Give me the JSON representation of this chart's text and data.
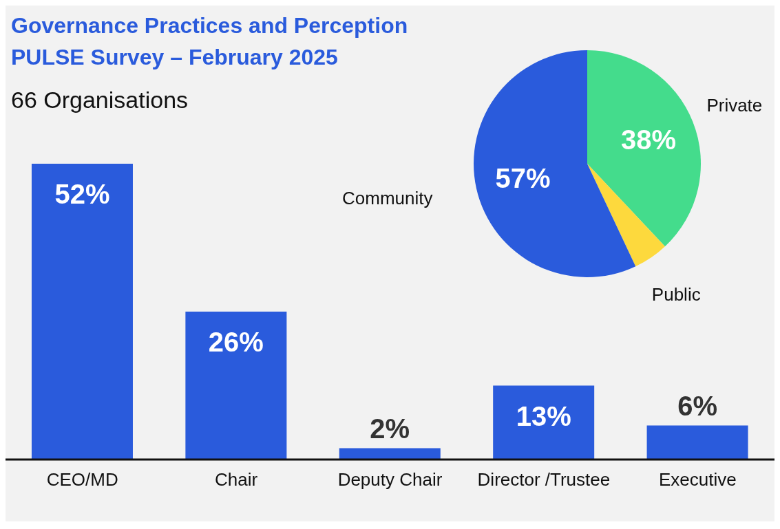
{
  "chart_data": [
    {
      "type": "bar",
      "title": "Governance Practices and Perception",
      "subtitle": "PULSE Survey – February 2025",
      "annotations": [
        "66 Organisations"
      ],
      "categories": [
        "CEO/MD",
        "Chair",
        "Deputy Chair",
        "Director /Trustee",
        "Executive"
      ],
      "values": [
        52,
        26,
        2,
        13,
        6
      ],
      "value_labels": [
        "52%",
        "26%",
        "2%",
        "13%",
        "6%"
      ],
      "color": "#2a5bdc"
    },
    {
      "type": "pie",
      "categories": [
        "Private",
        "Public",
        "Community"
      ],
      "values": [
        38,
        5,
        57
      ],
      "colors": [
        "#44dc8c",
        "#fdd93d",
        "#2a5bdc"
      ],
      "value_labels": [
        "38%",
        null,
        "57%"
      ]
    }
  ]
}
